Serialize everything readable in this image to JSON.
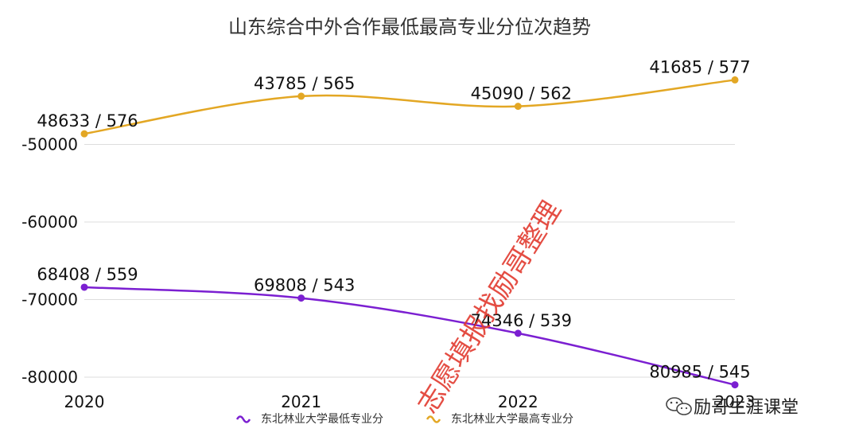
{
  "chart_data": {
    "type": "line",
    "title": "山东综合中外合作最低最高专业分位次趋势",
    "x": [
      "2020",
      "2021",
      "2022",
      "2023"
    ],
    "ylim": [
      -80000,
      -40000
    ],
    "yticks": [
      -50000,
      -60000,
      -70000,
      -80000
    ],
    "ytick_labels": [
      "-50000",
      "-60000",
      "-70000",
      "-80000"
    ],
    "grid": true,
    "legend_position": "bottom",
    "series": [
      {
        "name": "东北林业大学最低专业分",
        "color": "#7b1fd1",
        "values": [
          -68408,
          -69808,
          -74346,
          -80985
        ],
        "labels": [
          "68408 / 559",
          "69808 / 543",
          "74346 / 539",
          "80985 / 545"
        ]
      },
      {
        "name": "东北林业大学最高专业分",
        "color": "#e3a724",
        "values": [
          -48633,
          -43785,
          -45090,
          -41685
        ],
        "labels": [
          "48633 / 576",
          "43785 / 565",
          "45090 / 562",
          "41685 / 577"
        ]
      }
    ]
  },
  "watermark": {
    "text": "志愿填报找励哥整理"
  },
  "brand": {
    "text": "励哥生涯课堂",
    "icon": "wechat-icon"
  }
}
